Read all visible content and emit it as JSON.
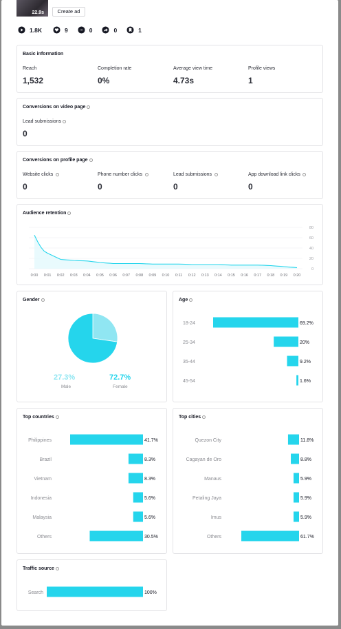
{
  "header": {
    "thumb_overlay": "22.9s",
    "create_ad_label": "Create ad",
    "stats": [
      {
        "icon": "play-icon",
        "value": "1.8K"
      },
      {
        "icon": "heart-icon",
        "value": "9"
      },
      {
        "icon": "comment-icon",
        "value": "0"
      },
      {
        "icon": "share-icon",
        "value": "0"
      },
      {
        "icon": "bookmark-icon",
        "value": "1"
      }
    ]
  },
  "basic": {
    "title": "Basic information",
    "metrics": [
      {
        "label": "Reach",
        "value": "1,532"
      },
      {
        "label": "Completion rate",
        "value": "0%"
      },
      {
        "label": "Average view time",
        "value": "4.73s"
      },
      {
        "label": "Profile views",
        "value": "1"
      }
    ]
  },
  "video_conv": {
    "title": "Conversions on video page",
    "metrics": [
      {
        "label": "Lead submissions",
        "value": "0"
      }
    ]
  },
  "profile_conv": {
    "title": "Conversions on profile page",
    "metrics": [
      {
        "label": "Website clicks",
        "value": "0"
      },
      {
        "label": "Phone number clicks",
        "value": "0"
      },
      {
        "label": "Lead submissions",
        "value": "0"
      },
      {
        "label": "App download link clicks",
        "value": "0"
      }
    ]
  },
  "retention": {
    "title": "Audience retention"
  },
  "gender": {
    "title": "Gender",
    "male_pct": "27.3%",
    "male_label": "Male",
    "female_pct": "72.7%",
    "female_label": "Female"
  },
  "age": {
    "title": "Age"
  },
  "countries": {
    "title": "Top countries"
  },
  "cities": {
    "title": "Top cities"
  },
  "traffic": {
    "title": "Traffic source"
  },
  "colors": {
    "accent": "#25d5ec",
    "male": "#90e6f2",
    "card_border": "#e3e3e6"
  },
  "chart_data": [
    {
      "type": "area",
      "title": "Audience retention",
      "x": [
        "0:00",
        "0:01",
        "0:02",
        "0:03",
        "0:04",
        "0:05",
        "0:06",
        "0:07",
        "0:08",
        "0:09",
        "0:10",
        "0:11",
        "0:12",
        "0:13",
        "0:14",
        "0:15",
        "0:16",
        "0:17",
        "0:18",
        "0:19",
        "0:20"
      ],
      "y_ticks": [
        0,
        20,
        40,
        60,
        80
      ],
      "ylim": [
        0,
        80
      ],
      "values": [
        65,
        30,
        18,
        16,
        15,
        12,
        10,
        10,
        10,
        9,
        9,
        9,
        8,
        8,
        8,
        7,
        7,
        7,
        6,
        4,
        2
      ],
      "grid": true
    },
    {
      "type": "pie",
      "title": "Gender",
      "categories": [
        "Male",
        "Female"
      ],
      "values": [
        27.3,
        72.7
      ]
    },
    {
      "type": "bar",
      "orientation": "horizontal",
      "title": "Age",
      "categories": [
        "18-24",
        "25-34",
        "35-44",
        "45-54"
      ],
      "values": [
        69.2,
        20,
        9.2,
        1.6
      ],
      "labels": [
        "69.2%",
        "20%",
        "9.2%",
        "1.6%"
      ]
    },
    {
      "type": "bar",
      "orientation": "horizontal",
      "title": "Top countries",
      "categories": [
        "Philippines",
        "Brazil",
        "Vietnam",
        "Indonesia",
        "Malaysia",
        "Others"
      ],
      "values": [
        41.7,
        8.3,
        8.3,
        5.6,
        5.6,
        30.5
      ],
      "labels": [
        "41.7%",
        "8.3%",
        "8.3%",
        "5.6%",
        "5.6%",
        "30.5%"
      ]
    },
    {
      "type": "bar",
      "orientation": "horizontal",
      "title": "Top cities",
      "categories": [
        "Quezon City",
        "Cagayan de Oro",
        "Manaus",
        "Petaling Jaya",
        "Imus",
        "Others"
      ],
      "values": [
        11.8,
        8.8,
        5.9,
        5.9,
        5.9,
        61.7
      ],
      "labels": [
        "11.8%",
        "8.8%",
        "5.9%",
        "5.9%",
        "5.9%",
        "61.7%"
      ]
    },
    {
      "type": "bar",
      "orientation": "horizontal",
      "title": "Traffic source",
      "categories": [
        "Search"
      ],
      "values": [
        100
      ],
      "labels": [
        "100%"
      ]
    }
  ]
}
